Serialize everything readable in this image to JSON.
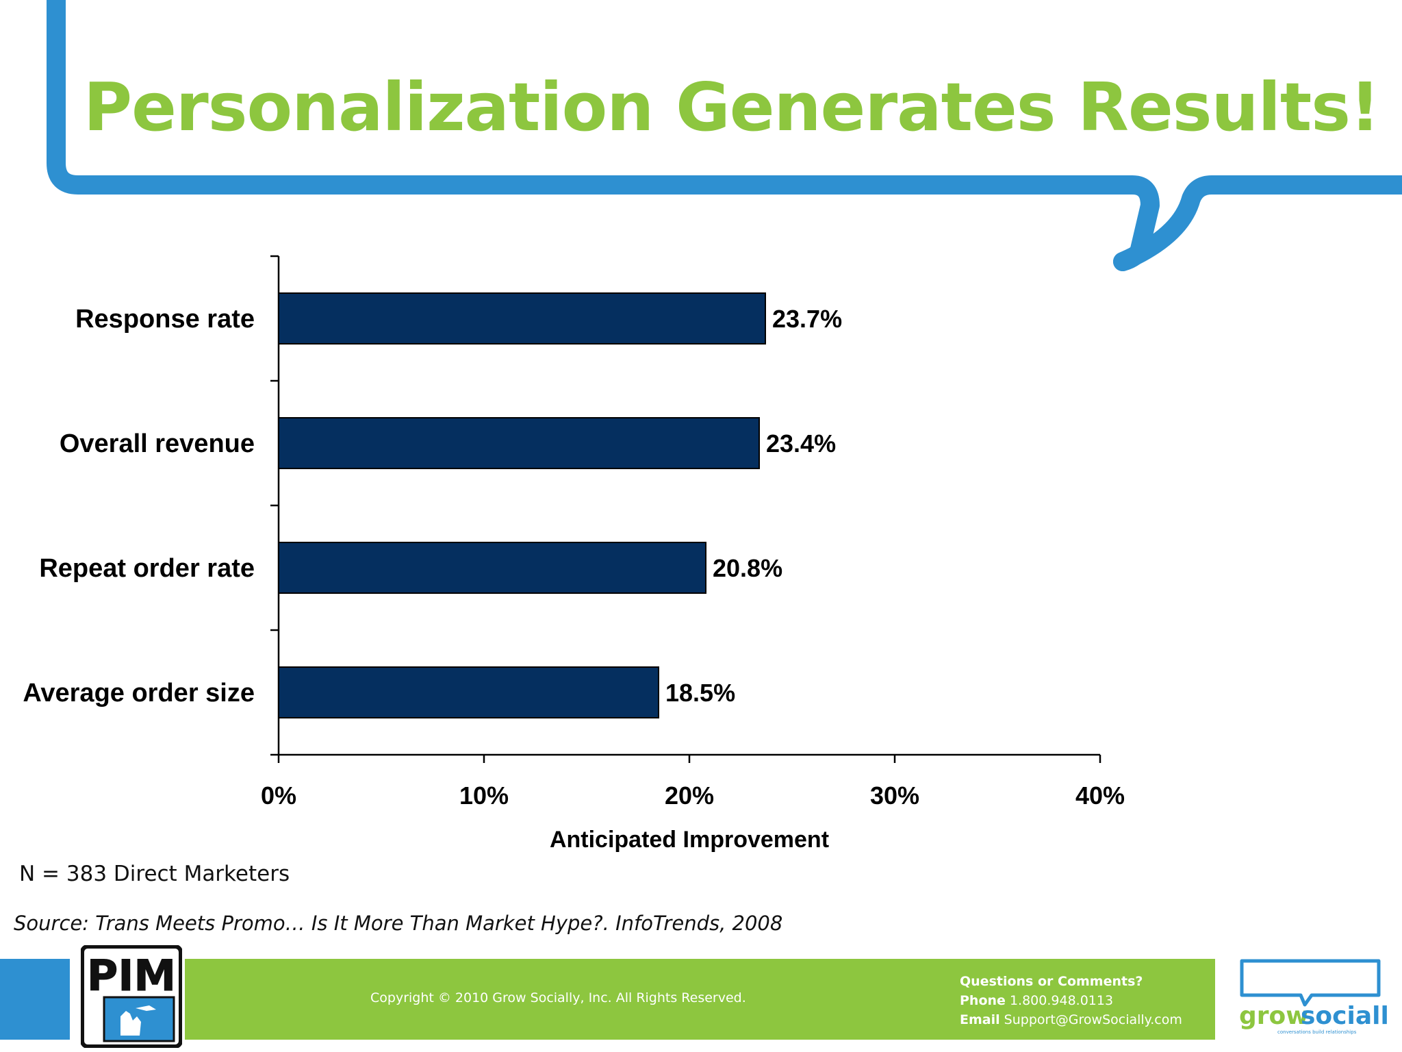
{
  "title": "Personalization Generates Results!",
  "chart_data": {
    "type": "bar",
    "orientation": "horizontal",
    "categories": [
      "Response rate",
      "Overall revenue",
      "Repeat order rate",
      "Average order size"
    ],
    "values": [
      23.7,
      23.4,
      20.8,
      18.5
    ],
    "value_labels": [
      "23.7%",
      "23.4%",
      "20.8%",
      "18.5%"
    ],
    "xlabel": "Anticipated Improvement",
    "ylabel": "",
    "xlim": [
      0,
      40
    ],
    "x_ticks": [
      0,
      10,
      20,
      30,
      40
    ],
    "x_tick_labels": [
      "0%",
      "10%",
      "20%",
      "30%",
      "40%"
    ],
    "bar_color": "#052F5F",
    "grid": false
  },
  "note": "N = 383 Direct Marketers",
  "source": "Source: Trans Meets Promo… Is It More Than Market Hype?. InfoTrends, 2008",
  "footer": {
    "copyright": "Copyright © 2010 Grow Socially, Inc. All Rights Reserved.",
    "contact_heading": "Questions or Comments?",
    "phone_label": "Phone",
    "phone": "1.800.948.0113",
    "email_label": "Email",
    "email": "Support@GrowSocially.com"
  },
  "logos": {
    "pim": "PIM",
    "grow_socially_1": "grow",
    "grow_socially_2": "socially",
    "grow_socially_tagline": "conversations build relationships"
  },
  "colors": {
    "title_green": "#8DC63F",
    "frame_blue": "#2E90D1",
    "bar_navy": "#052F5F",
    "footer_green": "#8DC63F"
  }
}
